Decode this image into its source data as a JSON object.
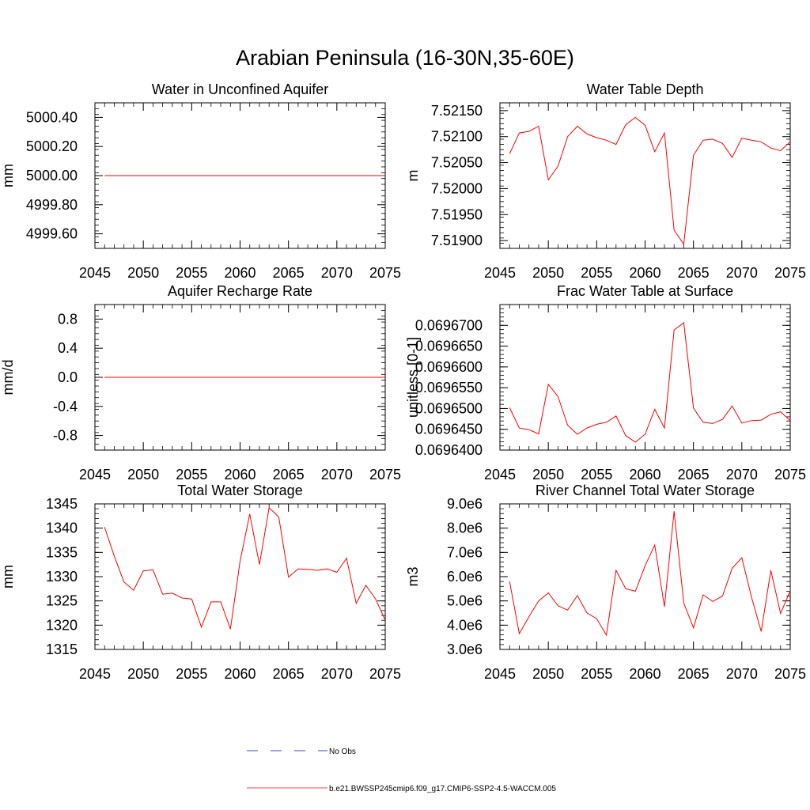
{
  "title": "Arabian Peninsula (16-30N,35-60E)",
  "colors": {
    "model": "#ff0000",
    "obs": "#0000cc",
    "axis": "#000000"
  },
  "legend": {
    "obs_label": "No Obs",
    "model_label": "b.e21.BWSSP245cmip6.f09_g17.CMIP6-SSP2-4.5-WACCM.005"
  },
  "chart_data": [
    {
      "type": "line",
      "title": "Water in Unconfined Aquifer",
      "ylabel": "mm",
      "xlim": [
        2045,
        2075
      ],
      "ylim": [
        4999.5,
        5000.5
      ],
      "xticks": [
        2045,
        2050,
        2055,
        2060,
        2065,
        2070,
        2075
      ],
      "xtick_labels": [
        "2045",
        "2050",
        "2055",
        "2060",
        "2065",
        "2070",
        "2075"
      ],
      "yticks": [
        4999.6,
        4999.8,
        5000.0,
        5000.2,
        5000.4
      ],
      "ytick_labels": [
        "4999.60",
        "4999.80",
        "5000.00",
        "5000.20",
        "5000.40"
      ],
      "x": [
        2046,
        2047,
        2048,
        2049,
        2050,
        2051,
        2052,
        2053,
        2054,
        2055,
        2056,
        2057,
        2058,
        2059,
        2060,
        2061,
        2062,
        2063,
        2064,
        2065,
        2066,
        2067,
        2068,
        2069,
        2070,
        2071,
        2072,
        2073,
        2074,
        2075
      ],
      "series": [
        {
          "values": [
            5000,
            5000,
            5000,
            5000,
            5000,
            5000,
            5000,
            5000,
            5000,
            5000,
            5000,
            5000,
            5000,
            5000,
            5000,
            5000,
            5000,
            5000,
            5000,
            5000,
            5000,
            5000,
            5000,
            5000,
            5000,
            5000,
            5000,
            5000,
            5000,
            5000
          ]
        }
      ]
    },
    {
      "type": "line",
      "title": "Water Table Depth",
      "ylabel": "m",
      "xlim": [
        2045,
        2075
      ],
      "ylim": [
        7.51885,
        7.52165
      ],
      "xticks": [
        2045,
        2050,
        2055,
        2060,
        2065,
        2070,
        2075
      ],
      "xtick_labels": [
        "2045",
        "2050",
        "2055",
        "2060",
        "2065",
        "2070",
        "2075"
      ],
      "yticks": [
        7.519,
        7.5195,
        7.52,
        7.5205,
        7.521,
        7.5215
      ],
      "ytick_labels": [
        "7.51900",
        "7.51950",
        "7.52000",
        "7.52050",
        "7.52100",
        "7.52150"
      ],
      "x": [
        2046,
        2047,
        2048,
        2049,
        2050,
        2051,
        2052,
        2053,
        2054,
        2055,
        2056,
        2057,
        2058,
        2059,
        2060,
        2061,
        2062,
        2063,
        2064,
        2065,
        2066,
        2067,
        2068,
        2069,
        2070,
        2071,
        2072,
        2073,
        2074,
        2075
      ],
      "series": [
        {
          "values": [
            7.52067,
            7.52107,
            7.5211,
            7.5212,
            7.52017,
            7.52043,
            7.521,
            7.5212,
            7.52105,
            7.52098,
            7.52093,
            7.52085,
            7.52123,
            7.52137,
            7.52122,
            7.52071,
            7.52107,
            7.5192,
            7.51893,
            7.52064,
            7.52093,
            7.52095,
            7.52087,
            7.5206,
            7.52097,
            7.52093,
            7.5209,
            7.52078,
            7.52073,
            7.5209
          ]
        }
      ]
    },
    {
      "type": "line",
      "title": "Aquifer Recharge Rate",
      "ylabel": "mm/d",
      "xlim": [
        2045,
        2075
      ],
      "ylim": [
        -1.0,
        1.0
      ],
      "xticks": [
        2045,
        2050,
        2055,
        2060,
        2065,
        2070,
        2075
      ],
      "xtick_labels": [
        "2045",
        "2050",
        "2055",
        "2060",
        "2065",
        "2070",
        "2075"
      ],
      "yticks": [
        -0.8,
        -0.4,
        0.0,
        0.4,
        0.8
      ],
      "ytick_labels": [
        "-0.8",
        "-0.4",
        "0.0",
        "0.4",
        "0.8"
      ],
      "x": [
        2046,
        2047,
        2048,
        2049,
        2050,
        2051,
        2052,
        2053,
        2054,
        2055,
        2056,
        2057,
        2058,
        2059,
        2060,
        2061,
        2062,
        2063,
        2064,
        2065,
        2066,
        2067,
        2068,
        2069,
        2070,
        2071,
        2072,
        2073,
        2074,
        2075
      ],
      "series": [
        {
          "values": [
            0,
            0,
            0,
            0,
            0,
            0,
            0,
            0,
            0,
            0,
            0,
            0,
            0,
            0,
            0,
            0,
            0,
            0,
            0,
            0,
            0,
            0,
            0,
            0,
            0,
            0,
            0,
            0,
            0,
            0
          ]
        }
      ]
    },
    {
      "type": "line",
      "title": "Frac Water Table at Surface",
      "ylabel": "unitless [0-1]",
      "xlim": [
        2045,
        2075
      ],
      "ylim": [
        0.06964,
        0.069675
      ],
      "xticks": [
        2045,
        2050,
        2055,
        2060,
        2065,
        2070,
        2075
      ],
      "xtick_labels": [
        "2045",
        "2050",
        "2055",
        "2060",
        "2065",
        "2070",
        "2075"
      ],
      "yticks": [
        0.06964,
        0.069645,
        0.06965,
        0.069655,
        0.06966,
        0.069665,
        0.06967
      ],
      "ytick_labels": [
        "0.0696400",
        "0.0696450",
        "0.0696500",
        "0.0696550",
        "0.0696600",
        "0.0696650",
        "0.0696700"
      ],
      "x": [
        2046,
        2047,
        2048,
        2049,
        2050,
        2051,
        2052,
        2053,
        2054,
        2055,
        2056,
        2057,
        2058,
        2059,
        2060,
        2061,
        2062,
        2063,
        2064,
        2065,
        2066,
        2067,
        2068,
        2069,
        2070,
        2071,
        2072,
        2073,
        2074,
        2075
      ],
      "series": [
        {
          "values": [
            0.0696502,
            0.0696453,
            0.0696449,
            0.0696439,
            0.0696558,
            0.0696529,
            0.069646,
            0.0696438,
            0.0696453,
            0.0696462,
            0.0696467,
            0.0696482,
            0.0696435,
            0.0696419,
            0.0696438,
            0.0696498,
            0.0696453,
            0.0696689,
            0.0696706,
            0.0696501,
            0.0696467,
            0.0696464,
            0.0696474,
            0.0696506,
            0.0696465,
            0.0696471,
            0.0696472,
            0.0696486,
            0.0696492,
            0.0696471
          ]
        }
      ]
    },
    {
      "type": "line",
      "title": "Total Water Storage",
      "ylabel": "mm",
      "xlim": [
        2045,
        2075
      ],
      "ylim": [
        1315,
        1345
      ],
      "xticks": [
        2045,
        2050,
        2055,
        2060,
        2065,
        2070,
        2075
      ],
      "xtick_labels": [
        "2045",
        "2050",
        "2055",
        "2060",
        "2065",
        "2070",
        "2075"
      ],
      "yticks": [
        1315,
        1320,
        1325,
        1330,
        1335,
        1340,
        1345
      ],
      "ytick_labels": [
        "1315",
        "1320",
        "1325",
        "1330",
        "1335",
        "1340",
        "1345"
      ],
      "x": [
        2046,
        2047,
        2048,
        2049,
        2050,
        2051,
        2052,
        2053,
        2054,
        2055,
        2056,
        2057,
        2058,
        2059,
        2060,
        2061,
        2062,
        2063,
        2064,
        2065,
        2066,
        2067,
        2068,
        2069,
        2070,
        2071,
        2072,
        2073,
        2074,
        2075
      ],
      "series": [
        {
          "values": [
            1340.2,
            1334.2,
            1328.9,
            1327.2,
            1331.2,
            1331.4,
            1326.4,
            1326.6,
            1325.6,
            1325.4,
            1319.6,
            1324.8,
            1324.8,
            1319.2,
            1333.2,
            1342.9,
            1332.5,
            1344.2,
            1342.3,
            1329.9,
            1331.6,
            1331.5,
            1331.3,
            1331.6,
            1330.9,
            1333.8,
            1324.5,
            1328.2,
            1325.4,
            1321.0
          ]
        }
      ]
    },
    {
      "type": "line",
      "title": "River Channel Total Water Storage",
      "ylabel": "m3",
      "xlim": [
        2045,
        2075
      ],
      "ylim": [
        3000000,
        9000000
      ],
      "xticks": [
        2045,
        2050,
        2055,
        2060,
        2065,
        2070,
        2075
      ],
      "xtick_labels": [
        "2045",
        "2050",
        "2055",
        "2060",
        "2065",
        "2070",
        "2075"
      ],
      "yticks": [
        3000000,
        4000000,
        5000000,
        6000000,
        7000000,
        8000000,
        9000000
      ],
      "ytick_labels": [
        "3.0e6",
        "4.0e6",
        "5.0e6",
        "6.0e6",
        "7.0e6",
        "8.0e6",
        "9.0e6"
      ],
      "x": [
        2046,
        2047,
        2048,
        2049,
        2050,
        2051,
        2052,
        2053,
        2054,
        2055,
        2056,
        2057,
        2058,
        2059,
        2060,
        2061,
        2062,
        2063,
        2064,
        2065,
        2066,
        2067,
        2068,
        2069,
        2070,
        2071,
        2072,
        2073,
        2074,
        2075
      ],
      "series": [
        {
          "values": [
            5800000,
            3650000,
            4350000,
            5000000,
            5330000,
            4800000,
            4620000,
            5220000,
            4500000,
            4270000,
            3590000,
            6260000,
            5500000,
            5400000,
            6450000,
            7300000,
            4760000,
            8700000,
            4910000,
            3890000,
            5250000,
            4980000,
            5200000,
            6350000,
            6780000,
            5150000,
            3740000,
            6260000,
            4480000,
            5420000
          ]
        }
      ]
    }
  ]
}
